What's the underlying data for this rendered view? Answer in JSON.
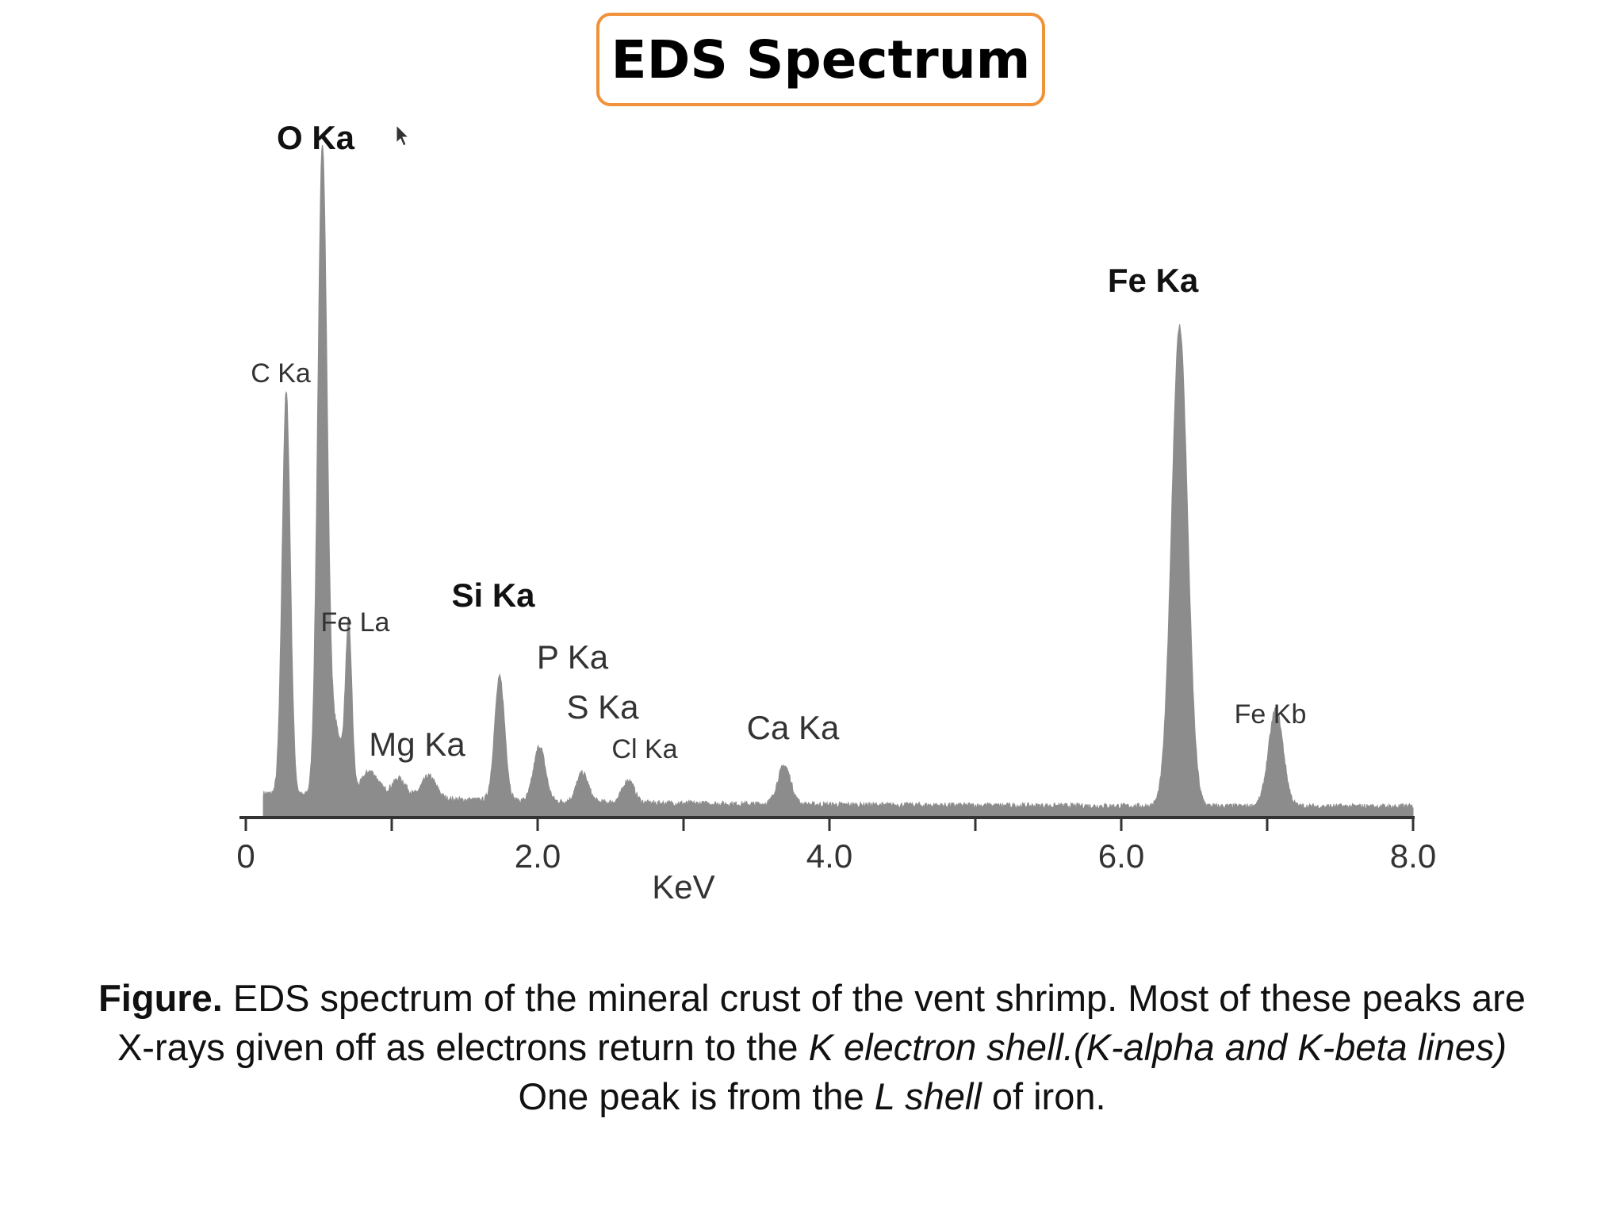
{
  "title": "EDS Spectrum",
  "chart_data": {
    "type": "area",
    "xlabel": "KeV",
    "ylabel": "",
    "xlim": [
      0,
      8.0
    ],
    "ylim": [
      0,
      100
    ],
    "x_ticks_major": [
      0,
      2.0,
      4.0,
      6.0,
      8.0
    ],
    "x_tick_labels": [
      "0",
      "2.0",
      "4.0",
      "6.0",
      "8.0"
    ],
    "x_ticks_minor": [
      1.0,
      3.0,
      5.0,
      7.0
    ],
    "series_color": "#8c8c8c",
    "baseline_level": 1.5,
    "peaks": [
      {
        "label": "C Ka",
        "keV": 0.277,
        "height": 62,
        "width": 0.028,
        "bold": false,
        "size": "medium"
      },
      {
        "label": "O Ka",
        "keV": 0.525,
        "height": 100,
        "width": 0.032,
        "bold": true,
        "size": "large"
      },
      {
        "label": "Fe La",
        "keV": 0.705,
        "height": 26,
        "width": 0.022,
        "bold": false,
        "size": "medium"
      },
      {
        "label": "Mg Ka",
        "keV": 1.254,
        "height": 3.5,
        "width": 0.05,
        "bold": false,
        "size": "large"
      },
      {
        "label": "Si Ka",
        "keV": 1.74,
        "height": 19,
        "width": 0.035,
        "bold": true,
        "size": "large"
      },
      {
        "label": "P Ka",
        "keV": 2.013,
        "height": 8.5,
        "width": 0.04,
        "bold": false,
        "size": "large"
      },
      {
        "label": "S Ka",
        "keV": 2.307,
        "height": 4.5,
        "width": 0.04,
        "bold": false,
        "size": "large"
      },
      {
        "label": "Cl Ka",
        "keV": 2.622,
        "height": 3.5,
        "width": 0.04,
        "bold": false,
        "size": "medium"
      },
      {
        "label": "Ca Ka",
        "keV": 3.69,
        "height": 6,
        "width": 0.045,
        "bold": false,
        "size": "large"
      },
      {
        "label": "Fe Ka",
        "keV": 6.4,
        "height": 74,
        "width": 0.055,
        "bold": true,
        "size": "large"
      },
      {
        "label": "Fe Kb",
        "keV": 7.06,
        "height": 15,
        "width": 0.05,
        "bold": false,
        "size": "medium"
      }
    ],
    "extra_shoulders": [
      {
        "keV": 0.62,
        "height": 10,
        "width": 0.04
      },
      {
        "keV": 1.05,
        "height": 3,
        "width": 0.05
      },
      {
        "keV": 0.85,
        "height": 4,
        "width": 0.06
      }
    ]
  },
  "caption": {
    "lead": "Figure.",
    "part1": " EDS spectrum of the mineral crust of the vent shrimp. Most of these peaks are X-rays given off as electrons return to the ",
    "italic1": "K electron shell.(K-alpha and K-beta lines)",
    "part2": " One peak is from the ",
    "italic2": "L shell",
    "part3": " of iron."
  }
}
